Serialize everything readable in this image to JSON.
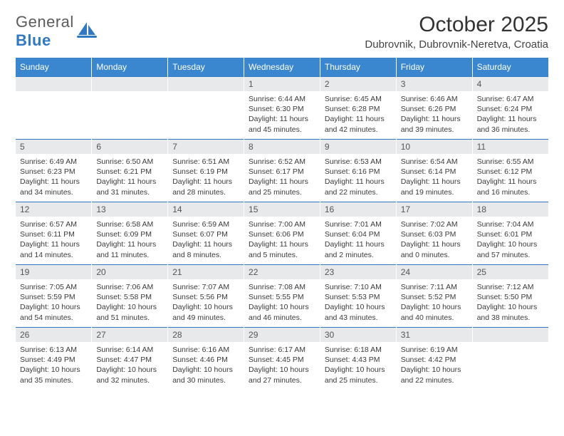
{
  "header": {
    "logo_general": "General",
    "logo_blue": "Blue",
    "month_title": "October 2025",
    "location": "Dubrovnik, Dubrovnik-Neretva, Croatia"
  },
  "colors": {
    "header_bg": "#3a87cf",
    "row_border": "#2f78c2",
    "daynum_bg": "#e7e9ea",
    "text": "#3a3a3a",
    "logo_gray": "#5b5b5b",
    "logo_blue": "#2f78c2"
  },
  "weekdays": [
    "Sunday",
    "Monday",
    "Tuesday",
    "Wednesday",
    "Thursday",
    "Friday",
    "Saturday"
  ],
  "grid": [
    [
      {
        "n": "",
        "sr": "",
        "ss": "",
        "dl": ""
      },
      {
        "n": "",
        "sr": "",
        "ss": "",
        "dl": ""
      },
      {
        "n": "",
        "sr": "",
        "ss": "",
        "dl": ""
      },
      {
        "n": "1",
        "sr": "6:44 AM",
        "ss": "6:30 PM",
        "dl": "11 hours and 45 minutes."
      },
      {
        "n": "2",
        "sr": "6:45 AM",
        "ss": "6:28 PM",
        "dl": "11 hours and 42 minutes."
      },
      {
        "n": "3",
        "sr": "6:46 AM",
        "ss": "6:26 PM",
        "dl": "11 hours and 39 minutes."
      },
      {
        "n": "4",
        "sr": "6:47 AM",
        "ss": "6:24 PM",
        "dl": "11 hours and 36 minutes."
      }
    ],
    [
      {
        "n": "5",
        "sr": "6:49 AM",
        "ss": "6:23 PM",
        "dl": "11 hours and 34 minutes."
      },
      {
        "n": "6",
        "sr": "6:50 AM",
        "ss": "6:21 PM",
        "dl": "11 hours and 31 minutes."
      },
      {
        "n": "7",
        "sr": "6:51 AM",
        "ss": "6:19 PM",
        "dl": "11 hours and 28 minutes."
      },
      {
        "n": "8",
        "sr": "6:52 AM",
        "ss": "6:17 PM",
        "dl": "11 hours and 25 minutes."
      },
      {
        "n": "9",
        "sr": "6:53 AM",
        "ss": "6:16 PM",
        "dl": "11 hours and 22 minutes."
      },
      {
        "n": "10",
        "sr": "6:54 AM",
        "ss": "6:14 PM",
        "dl": "11 hours and 19 minutes."
      },
      {
        "n": "11",
        "sr": "6:55 AM",
        "ss": "6:12 PM",
        "dl": "11 hours and 16 minutes."
      }
    ],
    [
      {
        "n": "12",
        "sr": "6:57 AM",
        "ss": "6:11 PM",
        "dl": "11 hours and 14 minutes."
      },
      {
        "n": "13",
        "sr": "6:58 AM",
        "ss": "6:09 PM",
        "dl": "11 hours and 11 minutes."
      },
      {
        "n": "14",
        "sr": "6:59 AM",
        "ss": "6:07 PM",
        "dl": "11 hours and 8 minutes."
      },
      {
        "n": "15",
        "sr": "7:00 AM",
        "ss": "6:06 PM",
        "dl": "11 hours and 5 minutes."
      },
      {
        "n": "16",
        "sr": "7:01 AM",
        "ss": "6:04 PM",
        "dl": "11 hours and 2 minutes."
      },
      {
        "n": "17",
        "sr": "7:02 AM",
        "ss": "6:03 PM",
        "dl": "11 hours and 0 minutes."
      },
      {
        "n": "18",
        "sr": "7:04 AM",
        "ss": "6:01 PM",
        "dl": "10 hours and 57 minutes."
      }
    ],
    [
      {
        "n": "19",
        "sr": "7:05 AM",
        "ss": "5:59 PM",
        "dl": "10 hours and 54 minutes."
      },
      {
        "n": "20",
        "sr": "7:06 AM",
        "ss": "5:58 PM",
        "dl": "10 hours and 51 minutes."
      },
      {
        "n": "21",
        "sr": "7:07 AM",
        "ss": "5:56 PM",
        "dl": "10 hours and 49 minutes."
      },
      {
        "n": "22",
        "sr": "7:08 AM",
        "ss": "5:55 PM",
        "dl": "10 hours and 46 minutes."
      },
      {
        "n": "23",
        "sr": "7:10 AM",
        "ss": "5:53 PM",
        "dl": "10 hours and 43 minutes."
      },
      {
        "n": "24",
        "sr": "7:11 AM",
        "ss": "5:52 PM",
        "dl": "10 hours and 40 minutes."
      },
      {
        "n": "25",
        "sr": "7:12 AM",
        "ss": "5:50 PM",
        "dl": "10 hours and 38 minutes."
      }
    ],
    [
      {
        "n": "26",
        "sr": "6:13 AM",
        "ss": "4:49 PM",
        "dl": "10 hours and 35 minutes."
      },
      {
        "n": "27",
        "sr": "6:14 AM",
        "ss": "4:47 PM",
        "dl": "10 hours and 32 minutes."
      },
      {
        "n": "28",
        "sr": "6:16 AM",
        "ss": "4:46 PM",
        "dl": "10 hours and 30 minutes."
      },
      {
        "n": "29",
        "sr": "6:17 AM",
        "ss": "4:45 PM",
        "dl": "10 hours and 27 minutes."
      },
      {
        "n": "30",
        "sr": "6:18 AM",
        "ss": "4:43 PM",
        "dl": "10 hours and 25 minutes."
      },
      {
        "n": "31",
        "sr": "6:19 AM",
        "ss": "4:42 PM",
        "dl": "10 hours and 22 minutes."
      },
      {
        "n": "",
        "sr": "",
        "ss": "",
        "dl": ""
      }
    ]
  ],
  "labels": {
    "sunrise": "Sunrise:",
    "sunset": "Sunset:",
    "daylight": "Daylight:"
  }
}
